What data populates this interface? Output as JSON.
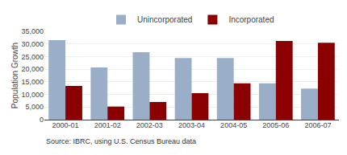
{
  "chart_data": {
    "type": "bar",
    "categories": [
      "2000-01",
      "2001-02",
      "2002-03",
      "2003-04",
      "2004-05",
      "2005-06",
      "2006-07"
    ],
    "series": [
      {
        "name": "Unincorporated",
        "color": "#9baec8",
        "values": [
          31500,
          20700,
          26700,
          24400,
          24400,
          14400,
          12300
        ]
      },
      {
        "name": "Incorporated",
        "color": "#8b0000",
        "values": [
          13400,
          5200,
          7000,
          10500,
          14400,
          31200,
          30500
        ]
      }
    ],
    "ylabel": "Population Growth",
    "ylim": [
      0,
      35000
    ],
    "yticks": [
      0,
      {
        "value": 5000,
        "label": "5,000"
      },
      {
        "value": 10000,
        "label": "10,000"
      },
      {
        "value": 15000,
        "label": "15,000"
      },
      {
        "value": 20000,
        "label": "20,000"
      },
      {
        "value": 25000,
        "label": "25,000"
      },
      {
        "value": 30000,
        "label": "30,000"
      },
      {
        "value": 35000,
        "label": "35,000"
      }
    ],
    "grid": true,
    "legend": "top",
    "annotations": [
      "Source: IBRC, using U.S. Census Bureau data"
    ]
  }
}
